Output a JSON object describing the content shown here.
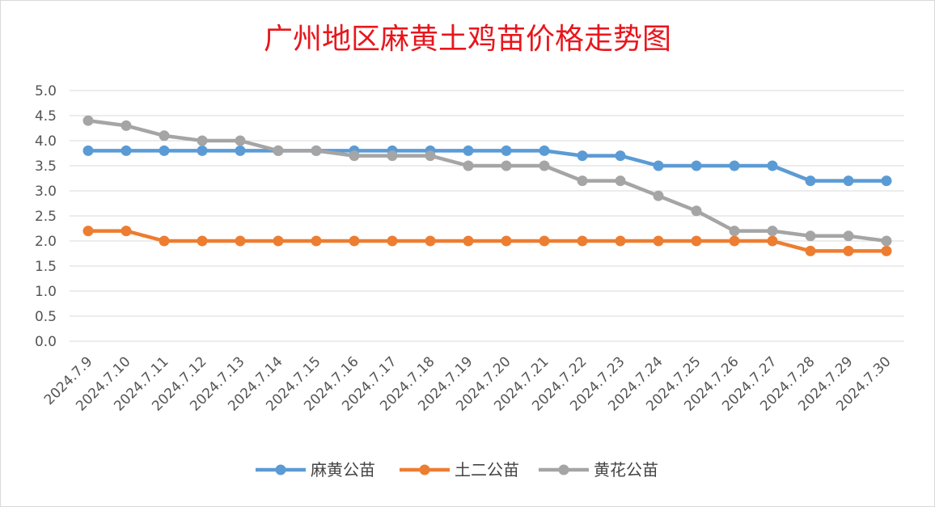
{
  "chart_data": {
    "type": "line",
    "title": "广州地区麻黄土鸡苗价格走势图",
    "xlabel": "",
    "ylabel": "",
    "ylim": [
      0,
      5.0
    ],
    "y_ticks": [
      "0.0",
      "0.5",
      "1.0",
      "1.5",
      "2.0",
      "2.5",
      "3.0",
      "3.5",
      "4.0",
      "4.5",
      "5.0"
    ],
    "grid": true,
    "legend_position": "bottom",
    "x": [
      "2024.7.9",
      "2024.7.10",
      "2024.7.11",
      "2024.7.12",
      "2024.7.13",
      "2024.7.14",
      "2024.7.15",
      "2024.7.16",
      "2024.7.17",
      "2024.7.18",
      "2024.7.19",
      "2024.7.20",
      "2024.7.21",
      "2024.7.22",
      "2024.7.23",
      "2024.7.24",
      "2024.7.25",
      "2024.7.26",
      "2024.7.27",
      "2024.7.28",
      "2024.7.29",
      "2024.7.30"
    ],
    "series": [
      {
        "name": "麻黄公苗",
        "color": "#5b9bd5",
        "values": [
          3.8,
          3.8,
          3.8,
          3.8,
          3.8,
          3.8,
          3.8,
          3.8,
          3.8,
          3.8,
          3.8,
          3.8,
          3.8,
          3.7,
          3.7,
          3.5,
          3.5,
          3.5,
          3.5,
          3.2,
          3.2,
          3.2
        ]
      },
      {
        "name": "土二公苗",
        "color": "#ed7d31",
        "values": [
          2.2,
          2.2,
          2.0,
          2.0,
          2.0,
          2.0,
          2.0,
          2.0,
          2.0,
          2.0,
          2.0,
          2.0,
          2.0,
          2.0,
          2.0,
          2.0,
          2.0,
          2.0,
          2.0,
          1.8,
          1.8,
          1.8
        ]
      },
      {
        "name": "黄花公苗",
        "color": "#a5a5a5",
        "values": [
          4.4,
          4.3,
          4.1,
          4.0,
          4.0,
          3.8,
          3.8,
          3.7,
          3.7,
          3.7,
          3.5,
          3.5,
          3.5,
          3.2,
          3.2,
          2.9,
          2.6,
          2.2,
          2.2,
          2.1,
          2.1,
          2.0
        ]
      }
    ]
  }
}
